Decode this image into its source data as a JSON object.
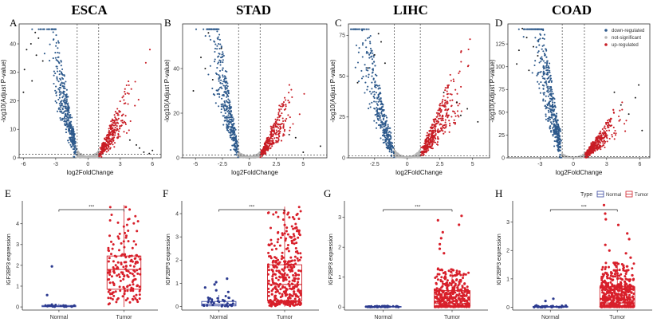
{
  "colors": {
    "down": "#2e5a8c",
    "ns": "#b8b8b8",
    "up": "#c81d25",
    "normal": "#2b3a8f",
    "tumor": "#d81f2a",
    "box_normal": "#3b4aa0",
    "box_tumor": "#d0222b"
  },
  "legend_volcano": {
    "items": [
      {
        "label": "down-regulated",
        "color": "#2e5a8c"
      },
      {
        "label": "not-significant",
        "color": "#b8b8b8"
      },
      {
        "label": "up-regulated",
        "color": "#c81d25"
      }
    ]
  },
  "legend_box": {
    "title": "Type",
    "items": [
      {
        "label": "Normal",
        "color": "#3b4aa0"
      },
      {
        "label": "Tumor",
        "color": "#d0222b"
      }
    ]
  },
  "chart_data": [
    {
      "type": "scatter",
      "panel": "A",
      "title": "ESCA",
      "xlabel": "log2FoldChange",
      "ylabel": "-log10(Adjust P-value)",
      "xlim": [
        -6.4,
        6.8
      ],
      "ylim": [
        0,
        47
      ],
      "xticks": [
        -6,
        -3,
        0,
        3,
        6
      ],
      "yticks": [
        0,
        10,
        20,
        30,
        40
      ],
      "fc_cut": 1,
      "p_line": 1.3,
      "spread": {
        "down": 20,
        "up": 10
      },
      "n_points": {
        "down": 380,
        "up": 300,
        "ns": 520
      },
      "outliers_down": [
        [
          -5.7,
          38
        ],
        [
          -5.3,
          40
        ],
        [
          -4.9,
          44
        ],
        [
          -4.8,
          36
        ],
        [
          -4.6,
          42
        ],
        [
          -5.9,
          31
        ],
        [
          -4.2,
          34
        ],
        [
          -6.0,
          23
        ],
        [
          -5.2,
          27
        ]
      ],
      "outliers_up": [
        [
          5.7,
          1.5
        ],
        [
          6.0,
          2.6
        ],
        [
          4.8,
          3.4
        ],
        [
          4.5,
          4.5
        ],
        [
          3.9,
          6.2
        ],
        [
          5.2,
          2.0
        ]
      ]
    },
    {
      "type": "scatter",
      "panel": "B",
      "title": "STAD",
      "xlabel": "log2FoldChange",
      "ylabel": "-log10(Adjust P-value)",
      "xlim": [
        -6.2,
        7.2
      ],
      "ylim": [
        0,
        60
      ],
      "xticks": [
        -5.0,
        -2.5,
        0.0,
        2.5,
        5.0
      ],
      "yticks": [
        0,
        20,
        40
      ],
      "fc_cut": 1,
      "p_line": 1.3,
      "spread": {
        "down": 27,
        "up": 12
      },
      "n_points": {
        "down": 380,
        "up": 300,
        "ns": 520
      },
      "outliers_down": [
        [
          -3.8,
          56
        ],
        [
          -2.6,
          49
        ],
        [
          -4.5,
          45
        ],
        [
          -4.1,
          40
        ],
        [
          -3.4,
          35
        ],
        [
          -5.2,
          30
        ]
      ],
      "outliers_up": [
        [
          6.6,
          5.2
        ],
        [
          4.3,
          9.0
        ],
        [
          3.7,
          10.4
        ],
        [
          5.0,
          2.5
        ]
      ]
    },
    {
      "type": "scatter",
      "panel": "C",
      "title": "LIHC",
      "xlabel": "log2FoldChange",
      "ylabel": "-log10(Adjust P-value)",
      "xlim": [
        -4.5,
        6.3
      ],
      "ylim": [
        0,
        82
      ],
      "xticks": [
        -2.5,
        0.0,
        2.5,
        5.0
      ],
      "yticks": [
        0,
        25,
        50,
        75
      ],
      "fc_cut": 1,
      "p_line": 1.3,
      "spread": {
        "down": 34,
        "up": 22
      },
      "n_points": {
        "down": 360,
        "up": 380,
        "ns": 520
      },
      "outliers_down": [
        [
          -2.2,
          76
        ],
        [
          -2.0,
          71
        ],
        [
          -2.5,
          63
        ],
        [
          -3.8,
          46
        ],
        [
          -1.7,
          58
        ],
        [
          -3.0,
          55
        ]
      ],
      "outliers_up": [
        [
          5.4,
          22
        ],
        [
          4.6,
          30
        ],
        [
          3.8,
          34
        ],
        [
          4.1,
          26
        ],
        [
          2.8,
          40
        ]
      ]
    },
    {
      "type": "scatter",
      "panel": "D",
      "title": "COAD",
      "xlabel": "log2FoldChange",
      "ylabel": "-log10(Adjust P-value)",
      "xlim": [
        -5.9,
        6.9
      ],
      "ylim": [
        0,
        147
      ],
      "xticks": [
        -3,
        0,
        3,
        6
      ],
      "yticks": [
        0,
        25,
        50,
        75,
        100,
        125
      ],
      "fc_cut": 1,
      "p_line": 1.3,
      "spread": {
        "down": 75,
        "up": 20
      },
      "n_points": {
        "down": 460,
        "up": 380,
        "ns": 520
      },
      "outliers_down": [
        [
          -4.6,
          142
        ],
        [
          -4.2,
          132
        ],
        [
          -4.9,
          118
        ],
        [
          -5.1,
          103
        ],
        [
          -3.6,
          122
        ],
        [
          -4.0,
          96
        ],
        [
          -3.2,
          112
        ]
      ],
      "outliers_up": [
        [
          5.9,
          80
        ],
        [
          5.6,
          66
        ],
        [
          5.0,
          48
        ],
        [
          6.2,
          30
        ],
        [
          4.3,
          58
        ],
        [
          3.7,
          72
        ]
      ]
    },
    {
      "type": "box",
      "panel": "E",
      "xlabel": "",
      "ylabel": "IGF2BP3 expression",
      "categories": [
        "Normal",
        "Tumor"
      ],
      "ylim": [
        -0.15,
        5.1
      ],
      "yticks": [
        0,
        1,
        2,
        3,
        4
      ],
      "significance": "***",
      "boxes": [
        {
          "name": "Normal",
          "q1": 0.01,
          "median": 0.03,
          "q3": 0.07,
          "whisker_low": 0.0,
          "whisker_high": 0.15,
          "n": 12,
          "points": [
            0.04,
            0.03,
            0.06,
            0.02,
            0.05,
            0.1,
            0.01,
            0.02,
            0.07
          ],
          "outliers": [
            1.95,
            0.57
          ]
        },
        {
          "name": "Tumor",
          "q1": 0.85,
          "median": 1.8,
          "q3": 2.45,
          "whisker_low": 0.0,
          "whisker_high": 4.9,
          "n": 180,
          "points": [],
          "outliers": []
        }
      ]
    },
    {
      "type": "box",
      "panel": "F",
      "xlabel": "",
      "ylabel": "IGF2BP3 expression",
      "categories": [
        "Normal",
        "Tumor"
      ],
      "ylim": [
        -0.15,
        4.55
      ],
      "yticks": [
        0,
        1,
        2,
        3,
        4
      ],
      "significance": "***",
      "boxes": [
        {
          "name": "Normal",
          "q1": 0.03,
          "median": 0.1,
          "q3": 0.22,
          "whisker_low": 0.0,
          "whisker_high": 0.5,
          "n": 32,
          "points": [],
          "outliers": [
            1.2,
            1.05,
            0.95,
            0.82,
            0.7,
            0.63
          ]
        },
        {
          "name": "Tumor",
          "q1": 0.25,
          "median": 0.95,
          "q3": 1.8,
          "whisker_low": 0.0,
          "whisker_high": 4.3,
          "n": 380,
          "points": [],
          "outliers": []
        }
      ]
    },
    {
      "type": "box",
      "panel": "G",
      "xlabel": "",
      "ylabel": "IGF2BP3 expression",
      "categories": [
        "Normal",
        "Tumor"
      ],
      "ylim": [
        -0.1,
        3.55
      ],
      "yticks": [
        0,
        1,
        2,
        3
      ],
      "significance": "***",
      "boxes": [
        {
          "name": "Normal",
          "q1": 0.0,
          "median": 0.01,
          "q3": 0.02,
          "whisker_low": 0.0,
          "whisker_high": 0.04,
          "n": 50,
          "points": [],
          "outliers": []
        },
        {
          "name": "Tumor",
          "q1": 0.03,
          "median": 0.12,
          "q3": 0.55,
          "whisker_low": 0.0,
          "whisker_high": 1.3,
          "n": 370,
          "points": [],
          "outliers": [
            3.05,
            2.9,
            2.75,
            2.5,
            2.3,
            2.1,
            1.95,
            1.8
          ]
        }
      ]
    },
    {
      "type": "box",
      "panel": "H",
      "xlabel": "",
      "ylabel": "IGF2BP3 expression",
      "categories": [
        "Normal",
        "Tumor"
      ],
      "ylim": [
        -0.1,
        3.75
      ],
      "yticks": [
        0,
        1,
        2,
        3
      ],
      "significance": "***",
      "boxes": [
        {
          "name": "Normal",
          "q1": 0.0,
          "median": 0.01,
          "q3": 0.03,
          "whisker_low": 0.0,
          "whisker_high": 0.07,
          "n": 40,
          "points": [],
          "outliers": [
            0.3,
            0.22
          ]
        },
        {
          "name": "Tumor",
          "q1": 0.03,
          "median": 0.15,
          "q3": 0.72,
          "whisker_low": 0.0,
          "whisker_high": 1.6,
          "n": 480,
          "points": [],
          "outliers": [
            3.6,
            3.3,
            3.1,
            2.9,
            2.6,
            2.4,
            2.2,
            2.0,
            1.9,
            1.75
          ]
        }
      ]
    }
  ]
}
